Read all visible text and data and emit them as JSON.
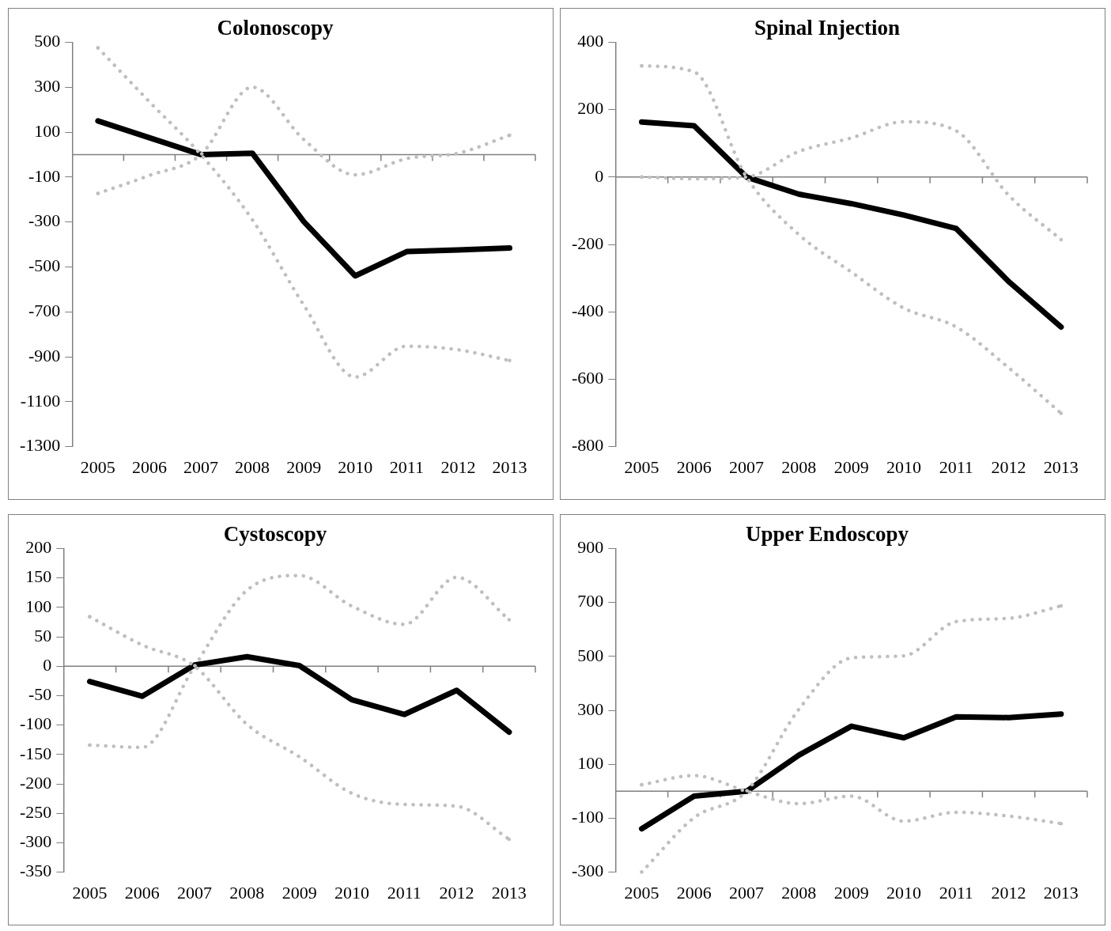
{
  "chart_data": [
    {
      "type": "line",
      "title": "Colonoscopy",
      "ref_lines": [
        {
          "axis": "y",
          "value": 0,
          "color": "#808080"
        }
      ],
      "categories": [
        "2005",
        "2006",
        "2007",
        "2008",
        "2009",
        "2010",
        "2011",
        "2012",
        "2013"
      ],
      "ylim": [
        -1300,
        500
      ],
      "yticks": [
        -1300,
        -1100,
        -900,
        -700,
        -500,
        -300,
        -100,
        100,
        300,
        500
      ],
      "grid": false,
      "legend": false,
      "marker": "none",
      "series": [
        {
          "color": "#bfbfbf",
          "line_style": "dotted",
          "values": [
            475,
            235,
            0,
            -290,
            -670,
            -990,
            -853,
            -869,
            -917
          ]
        },
        {
          "color": "#bfbfbf",
          "line_style": "dotted",
          "values": [
            -173,
            -93,
            0,
            300,
            67,
            -90,
            -18,
            6,
            86
          ]
        },
        {
          "color": "#000000",
          "line_style": "solid",
          "values": [
            150,
            75,
            0,
            6,
            -298,
            -540,
            -432,
            -425,
            -416
          ]
        }
      ]
    },
    {
      "type": "line",
      "title": "Spinal Injection",
      "ref_lines": [
        {
          "axis": "y",
          "value": 0,
          "color": "#808080"
        }
      ],
      "categories": [
        "2005",
        "2006",
        "2007",
        "2008",
        "2009",
        "2010",
        "2011",
        "2012",
        "2013"
      ],
      "ylim": [
        -800,
        400
      ],
      "yticks": [
        -800,
        -600,
        -400,
        -200,
        0,
        200,
        400
      ],
      "grid": false,
      "legend": false,
      "marker": "none",
      "series": [
        {
          "color": "#bfbfbf",
          "line_style": "dotted",
          "values": [
            330,
            312,
            0,
            -171,
            -282,
            -389,
            -445,
            -566,
            -701
          ]
        },
        {
          "color": "#bfbfbf",
          "line_style": "dotted",
          "values": [
            0,
            -5,
            0,
            76,
            116,
            164,
            137,
            -54,
            -186
          ]
        },
        {
          "color": "#000000",
          "line_style": "solid",
          "values": [
            163,
            152,
            0,
            -51,
            -79,
            -113,
            -153,
            -310,
            -445
          ]
        }
      ]
    },
    {
      "type": "line",
      "title": "Cystoscopy",
      "ref_lines": [
        {
          "axis": "y",
          "value": 0,
          "color": "#808080"
        }
      ],
      "categories": [
        "2005",
        "2006",
        "2007",
        "2008",
        "2009",
        "2010",
        "2011",
        "2012",
        "2013"
      ],
      "ylim": [
        -350,
        200
      ],
      "yticks": [
        -350,
        -300,
        -250,
        -200,
        -150,
        -100,
        -50,
        0,
        50,
        100,
        150,
        200
      ],
      "grid": false,
      "legend": false,
      "marker": "none",
      "series": [
        {
          "color": "#bfbfbf",
          "line_style": "dotted",
          "values": [
            84,
            36,
            0,
            -99,
            -154,
            -216,
            -235,
            -238,
            -294
          ]
        },
        {
          "color": "#bfbfbf",
          "line_style": "dotted",
          "values": [
            -134,
            -138,
            0,
            129,
            154,
            102,
            71,
            151,
            79
          ]
        },
        {
          "color": "#000000",
          "line_style": "solid",
          "values": [
            -26,
            -51,
            2,
            16,
            1,
            -57,
            -82,
            -41,
            -112
          ]
        }
      ]
    },
    {
      "type": "line",
      "title": "Upper Endoscopy",
      "ref_lines": [
        {
          "axis": "y",
          "value": 0,
          "color": "#808080"
        }
      ],
      "categories": [
        "2005",
        "2006",
        "2007",
        "2008",
        "2009",
        "2010",
        "2011",
        "2012",
        "2013"
      ],
      "ylim": [
        -300,
        900
      ],
      "yticks": [
        -300,
        -100,
        100,
        300,
        500,
        700,
        900
      ],
      "grid": false,
      "legend": false,
      "marker": "none",
      "series": [
        {
          "color": "#bfbfbf",
          "line_style": "dotted",
          "values": [
            24,
            58,
            0,
            -46,
            -18,
            -111,
            -78,
            -92,
            -120
          ]
        },
        {
          "color": "#bfbfbf",
          "line_style": "dotted",
          "values": [
            -300,
            -98,
            0,
            304,
            494,
            502,
            629,
            641,
            687
          ]
        },
        {
          "color": "#000000",
          "line_style": "solid",
          "values": [
            -139,
            -18,
            0,
            134,
            241,
            198,
            276,
            273,
            286
          ]
        }
      ]
    }
  ]
}
